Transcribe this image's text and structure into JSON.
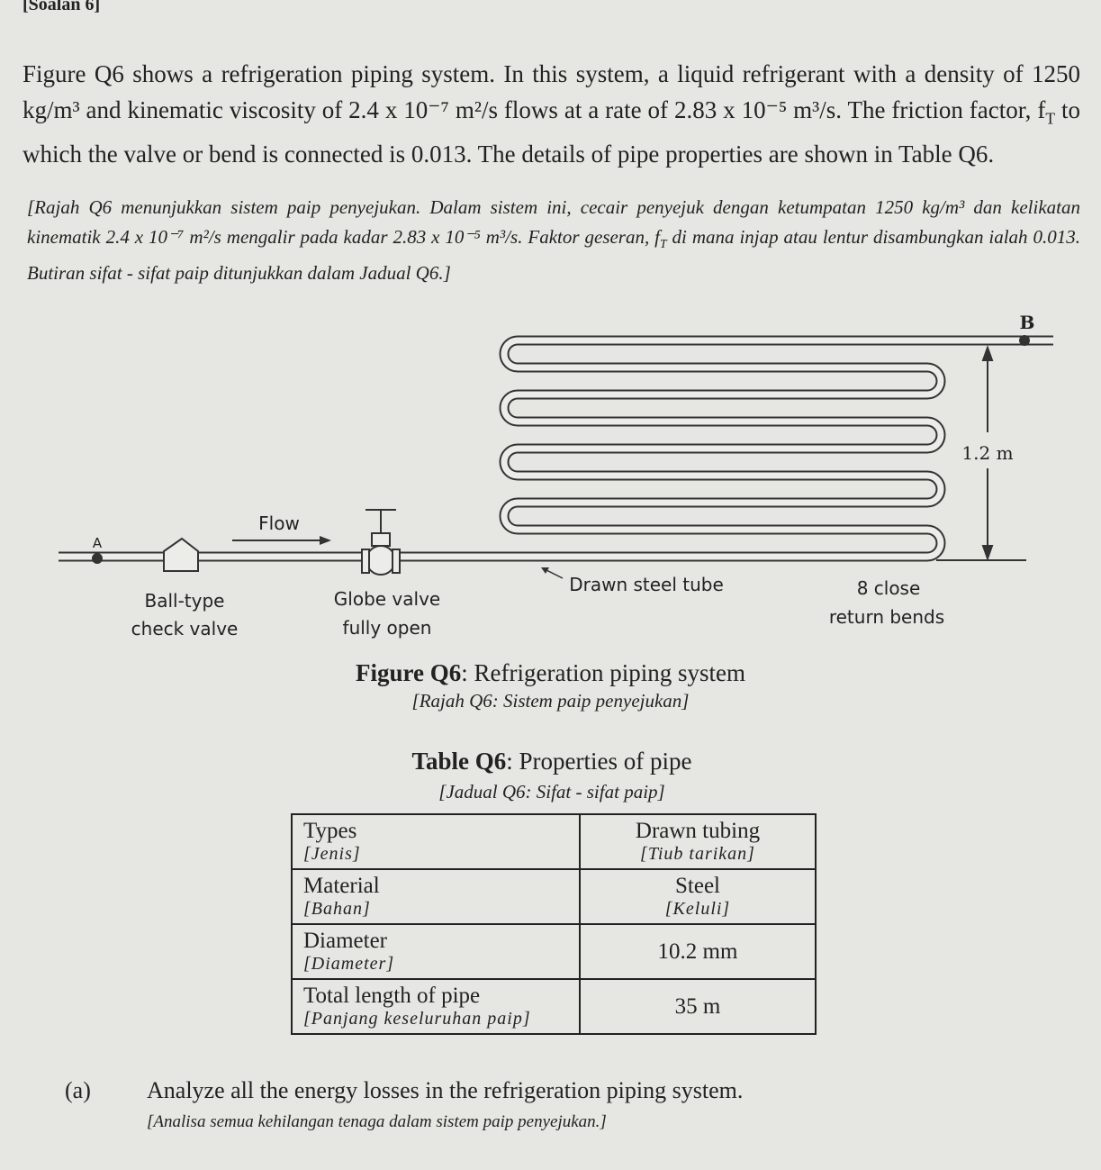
{
  "header": "[Soalan 6]",
  "intro": {
    "en": [
      "Figure Q6 shows a refrigeration piping system. In this system, a liquid refrigerant with a density of 1250 kg/m³ and kinematic viscosity of 2.4 x 10⁻⁷ m²/s flows at a rate of 2.83 x 10⁻⁵ m³/s. The friction factor, f",
      "T",
      " to which the valve or bend is connected is 0.013. The details of pipe properties are shown in Table Q6."
    ],
    "ms": [
      "[Rajah Q6 menunjukkan sistem paip penyejukan. Dalam sistem ini, cecair penyejuk dengan ketumpatan 1250 kg/m³ dan kelikatan kinematik 2.4 x 10⁻⁷ m²/s mengalir pada kadar 2.83 x 10⁻⁵ m³/s. Faktor geseran, f",
      "T",
      " di mana injap atau lentur disambungkan ialah 0.013. Butiran sifat - sifat paip ditunjukkan dalam Jadual Q6.]"
    ]
  },
  "figure": {
    "labels": {
      "b": "B",
      "height": "1.2 m",
      "flow": "Flow",
      "a": "A",
      "check_valve": [
        "Ball-type",
        "check valve"
      ],
      "globe_valve": [
        "Globe valve",
        "fully open"
      ],
      "tube": "Drawn steel tube",
      "bends": [
        "8 close",
        "return bends"
      ]
    },
    "caption": {
      "label": "Figure Q6",
      "text": ": Refrigeration piping system"
    },
    "caption_ms": "[Rajah Q6: Sistem paip penyejukan]"
  },
  "table": {
    "title": {
      "label": "Table Q6",
      "text": ": Properties of pipe"
    },
    "subtitle": "[Jadual Q6: Sifat - sifat paip]",
    "rows": [
      [
        [
          "Types",
          "[Jenis]"
        ],
        [
          "Drawn tubing",
          "[Tiub tarikan]"
        ]
      ],
      [
        [
          "Material",
          "[Bahan]"
        ],
        [
          "Steel",
          "[Keluli]"
        ]
      ],
      [
        [
          "Diameter",
          "[Diameter]"
        ],
        [
          "10.2 mm"
        ]
      ],
      [
        [
          "Total length of pipe",
          "[Panjang keseluruhan paip]"
        ],
        [
          "35 m"
        ]
      ]
    ]
  },
  "question": {
    "label": "(a)",
    "en": "Analyze all the energy losses in the refrigeration piping system.",
    "ms": "[Analisa semua kehilangan tenaga dalam sistem paip penyejukan.]"
  }
}
